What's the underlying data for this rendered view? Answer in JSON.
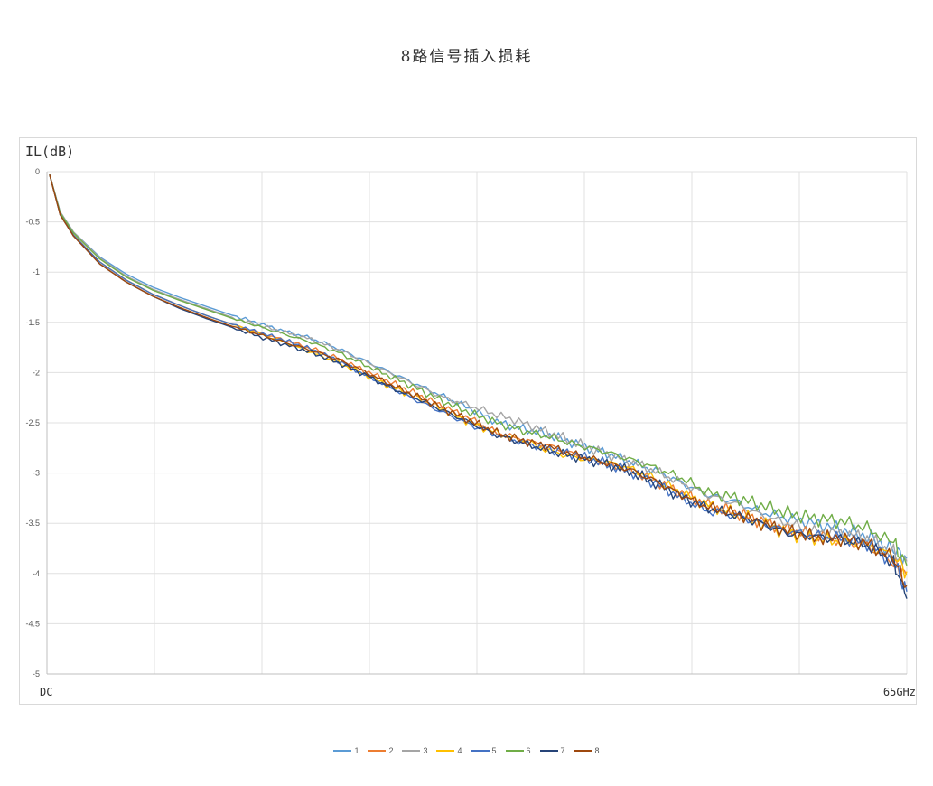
{
  "chart_data": {
    "type": "line",
    "title": "8路信号插入损耗",
    "ylabel": "IL(dB)",
    "xlabel": "",
    "x_tick_labels": [
      "DC",
      "65GHz"
    ],
    "xlim": [
      0,
      65
    ],
    "ylim": [
      -5,
      0
    ],
    "y_ticks": [
      "0",
      "-0.5",
      "-1",
      "-1.5",
      "-2",
      "-2.5",
      "-3",
      "-3.5",
      "-4",
      "-4.5",
      "-5"
    ],
    "grid": true,
    "legend_position": "bottom",
    "x": [
      0.2,
      1,
      2,
      4,
      6,
      8,
      10,
      12,
      14,
      16,
      18,
      20,
      22,
      24,
      26,
      28,
      30,
      32,
      34,
      36,
      38,
      40,
      42,
      44,
      46,
      48,
      50,
      52,
      54,
      56,
      58,
      60,
      62,
      64,
      65
    ],
    "series": [
      {
        "name": "1",
        "color": "#5b9bd5",
        "values": [
          -0.03,
          -0.4,
          -0.6,
          -0.85,
          -1.02,
          -1.15,
          -1.25,
          -1.34,
          -1.43,
          -1.51,
          -1.59,
          -1.66,
          -1.76,
          -1.88,
          -2.0,
          -2.12,
          -2.24,
          -2.36,
          -2.49,
          -2.56,
          -2.62,
          -2.71,
          -2.79,
          -2.88,
          -2.98,
          -3.1,
          -3.22,
          -3.28,
          -3.39,
          -3.45,
          -3.5,
          -3.56,
          -3.63,
          -3.77,
          -3.85
        ]
      },
      {
        "name": "2",
        "color": "#ed7d31",
        "values": [
          -0.03,
          -0.42,
          -0.63,
          -0.9,
          -1.08,
          -1.22,
          -1.33,
          -1.43,
          -1.52,
          -1.6,
          -1.68,
          -1.76,
          -1.86,
          -1.98,
          -2.1,
          -2.22,
          -2.34,
          -2.46,
          -2.6,
          -2.67,
          -2.73,
          -2.82,
          -2.9,
          -2.97,
          -3.08,
          -3.2,
          -3.32,
          -3.39,
          -3.48,
          -3.56,
          -3.62,
          -3.67,
          -3.72,
          -3.9,
          -4.02
        ]
      },
      {
        "name": "3",
        "color": "#a5a5a5",
        "values": [
          -0.03,
          -0.4,
          -0.6,
          -0.86,
          -1.04,
          -1.17,
          -1.27,
          -1.36,
          -1.45,
          -1.53,
          -1.6,
          -1.67,
          -1.77,
          -1.89,
          -2.01,
          -2.13,
          -2.25,
          -2.33,
          -2.42,
          -2.5,
          -2.6,
          -2.7,
          -2.8,
          -2.88,
          -2.98,
          -3.1,
          -3.22,
          -3.3,
          -3.42,
          -3.5,
          -3.58,
          -3.6,
          -3.65,
          -3.8,
          -3.88
        ]
      },
      {
        "name": "4",
        "color": "#ffc000",
        "values": [
          -0.03,
          -0.42,
          -0.63,
          -0.9,
          -1.08,
          -1.22,
          -1.33,
          -1.43,
          -1.52,
          -1.61,
          -1.7,
          -1.8,
          -1.9,
          -2.02,
          -2.14,
          -2.25,
          -2.37,
          -2.5,
          -2.6,
          -2.68,
          -2.78,
          -2.85,
          -2.88,
          -2.95,
          -3.06,
          -3.2,
          -3.32,
          -3.4,
          -3.5,
          -3.6,
          -3.65,
          -3.68,
          -3.72,
          -3.82,
          -3.98
        ]
      },
      {
        "name": "5",
        "color": "#4472c4",
        "values": [
          -0.03,
          -0.42,
          -0.63,
          -0.9,
          -1.08,
          -1.22,
          -1.33,
          -1.43,
          -1.52,
          -1.6,
          -1.68,
          -1.77,
          -1.88,
          -2.02,
          -2.15,
          -2.28,
          -2.4,
          -2.52,
          -2.62,
          -2.7,
          -2.76,
          -2.82,
          -2.9,
          -2.98,
          -3.1,
          -3.25,
          -3.38,
          -3.42,
          -3.5,
          -3.58,
          -3.62,
          -3.65,
          -3.7,
          -3.88,
          -4.18
        ]
      },
      {
        "name": "6",
        "color": "#70ad47",
        "values": [
          -0.03,
          -0.41,
          -0.61,
          -0.87,
          -1.05,
          -1.18,
          -1.28,
          -1.37,
          -1.46,
          -1.54,
          -1.62,
          -1.7,
          -1.8,
          -1.92,
          -2.04,
          -2.16,
          -2.29,
          -2.4,
          -2.5,
          -2.58,
          -2.64,
          -2.72,
          -2.78,
          -2.86,
          -2.95,
          -3.05,
          -3.2,
          -3.24,
          -3.32,
          -3.4,
          -3.45,
          -3.48,
          -3.55,
          -3.7,
          -3.92
        ]
      },
      {
        "name": "7",
        "color": "#264478",
        "values": [
          -0.03,
          -0.43,
          -0.64,
          -0.92,
          -1.1,
          -1.24,
          -1.36,
          -1.46,
          -1.55,
          -1.64,
          -1.72,
          -1.8,
          -1.9,
          -2.02,
          -2.15,
          -2.26,
          -2.38,
          -2.5,
          -2.62,
          -2.7,
          -2.78,
          -2.84,
          -2.9,
          -2.98,
          -3.1,
          -3.24,
          -3.35,
          -3.42,
          -3.5,
          -3.6,
          -3.63,
          -3.66,
          -3.72,
          -3.88,
          -4.25
        ]
      },
      {
        "name": "8",
        "color": "#9e480e",
        "values": [
          -0.03,
          -0.43,
          -0.64,
          -0.92,
          -1.1,
          -1.24,
          -1.35,
          -1.45,
          -1.54,
          -1.62,
          -1.7,
          -1.78,
          -1.87,
          -1.99,
          -2.12,
          -2.24,
          -2.36,
          -2.48,
          -2.6,
          -2.68,
          -2.74,
          -2.82,
          -2.89,
          -2.96,
          -3.08,
          -3.22,
          -3.34,
          -3.4,
          -3.5,
          -3.58,
          -3.64,
          -3.65,
          -3.7,
          -3.85,
          -4.12
        ]
      }
    ]
  }
}
